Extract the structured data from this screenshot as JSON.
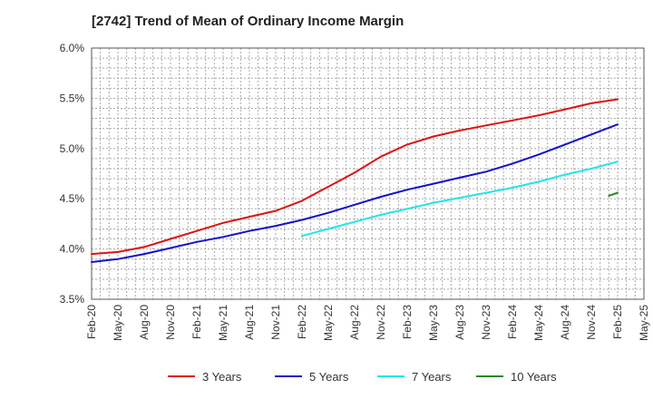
{
  "chart_data": {
    "type": "line",
    "title": "[2742]  Trend of Mean of Ordinary Income Margin",
    "xlabel": "",
    "ylabel": "",
    "ylim": [
      3.5,
      6.0
    ],
    "y_ticks": [
      "3.5%",
      "4.0%",
      "4.5%",
      "5.0%",
      "5.5%",
      "6.0%"
    ],
    "x_ticks": [
      "Feb-20",
      "May-20",
      "Aug-20",
      "Nov-20",
      "Feb-21",
      "May-21",
      "Aug-21",
      "Nov-21",
      "Feb-22",
      "May-22",
      "Aug-22",
      "Nov-22",
      "Feb-23",
      "May-23",
      "Aug-23",
      "Nov-23",
      "Feb-24",
      "May-24",
      "Aug-24",
      "Nov-24",
      "Feb-25",
      "May-25"
    ],
    "grid": true,
    "legend_position": "bottom",
    "series": [
      {
        "name": "3 Years",
        "color": "#dd1111",
        "x": [
          "Feb-20",
          "May-20",
          "Aug-20",
          "Nov-20",
          "Feb-21",
          "May-21",
          "Aug-21",
          "Nov-21",
          "Feb-22",
          "May-22",
          "Aug-22",
          "Nov-22",
          "Feb-23",
          "May-23",
          "Aug-23",
          "Nov-23",
          "Feb-24",
          "May-24",
          "Aug-24",
          "Nov-24",
          "Feb-25"
        ],
        "values": [
          3.95,
          3.97,
          4.02,
          4.1,
          4.18,
          4.26,
          4.32,
          4.38,
          4.48,
          4.62,
          4.76,
          4.92,
          5.04,
          5.12,
          5.18,
          5.23,
          5.28,
          5.33,
          5.39,
          5.45,
          5.49
        ]
      },
      {
        "name": "5 Years",
        "color": "#1111cc",
        "x": [
          "Feb-20",
          "May-20",
          "Aug-20",
          "Nov-20",
          "Feb-21",
          "May-21",
          "Aug-21",
          "Nov-21",
          "Feb-22",
          "May-22",
          "Aug-22",
          "Nov-22",
          "Feb-23",
          "May-23",
          "Aug-23",
          "Nov-23",
          "Feb-24",
          "May-24",
          "Aug-24",
          "Nov-24",
          "Feb-25"
        ],
        "values": [
          3.87,
          3.9,
          3.95,
          4.01,
          4.07,
          4.12,
          4.18,
          4.23,
          4.29,
          4.36,
          4.44,
          4.52,
          4.59,
          4.65,
          4.71,
          4.77,
          4.85,
          4.94,
          5.04,
          5.14,
          5.24
        ]
      },
      {
        "name": "7 Years",
        "color": "#22e5e5",
        "x": [
          "Feb-22",
          "May-22",
          "Aug-22",
          "Nov-22",
          "Feb-23",
          "May-23",
          "Aug-23",
          "Nov-23",
          "Feb-24",
          "May-24",
          "Aug-24",
          "Nov-24",
          "Feb-25"
        ],
        "values": [
          4.13,
          4.2,
          4.27,
          4.34,
          4.4,
          4.46,
          4.51,
          4.56,
          4.61,
          4.67,
          4.74,
          4.8,
          4.87
        ]
      },
      {
        "name": "10 Years",
        "color": "#228822",
        "x": [
          "Jan-25",
          "Feb-25"
        ],
        "values": [
          4.53,
          4.56
        ]
      }
    ]
  }
}
